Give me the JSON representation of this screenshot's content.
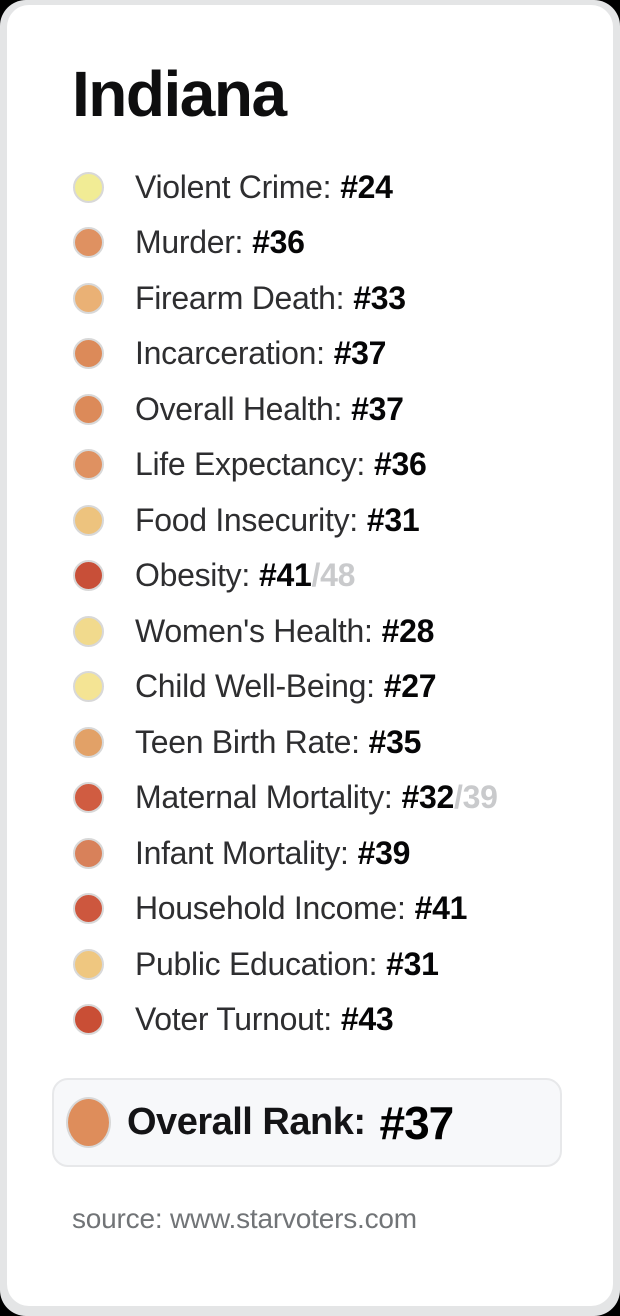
{
  "title": "Indiana",
  "rows": [
    {
      "label": "Violent Crime:",
      "rank": "#24",
      "alt": "",
      "color": "#f1ec95"
    },
    {
      "label": "Murder:",
      "rank": "#36",
      "alt": "",
      "color": "#df9161"
    },
    {
      "label": "Firearm Death:",
      "rank": "#33",
      "alt": "",
      "color": "#eab175"
    },
    {
      "label": "Incarceration:",
      "rank": "#37",
      "alt": "",
      "color": "#dc8a59"
    },
    {
      "label": "Overall Health:",
      "rank": "#37",
      "alt": "",
      "color": "#dc8a59"
    },
    {
      "label": "Life Expectancy:",
      "rank": "#36",
      "alt": "",
      "color": "#df9161"
    },
    {
      "label": "Food Insecurity:",
      "rank": "#31",
      "alt": "",
      "color": "#edc37e"
    },
    {
      "label": "Obesity:",
      "rank": "#41",
      "alt": "/48",
      "color": "#c84f38"
    },
    {
      "label": "Women's Health:",
      "rank": "#28",
      "alt": "",
      "color": "#f1da8d"
    },
    {
      "label": "Child Well-Being:",
      "rank": "#27",
      "alt": "",
      "color": "#f4e494"
    },
    {
      "label": "Teen Birth Rate:",
      "rank": "#35",
      "alt": "",
      "color": "#e2a167"
    },
    {
      "label": "Maternal Mortality:",
      "rank": "#32",
      "alt": "/39",
      "color": "#d05c41"
    },
    {
      "label": "Infant Mortality:",
      "rank": "#39",
      "alt": "",
      "color": "#d8815a"
    },
    {
      "label": "Household Income:",
      "rank": "#41",
      "alt": "",
      "color": "#cd573e"
    },
    {
      "label": "Public Education:",
      "rank": "#31",
      "alt": "",
      "color": "#efc780"
    },
    {
      "label": "Voter Turnout:",
      "rank": "#43",
      "alt": "",
      "color": "#c94e35"
    }
  ],
  "overall": {
    "label": "Overall Rank:",
    "rank": "#37",
    "color": "#de8d5b"
  },
  "footer": "source: www.starvoters.com",
  "colors": {
    "page_bg": "#000000",
    "frame_bg": "#e4e5e6",
    "card_bg": "#ffffff",
    "dot_border": "#d8d8d8",
    "label_text": "#2e2e30",
    "rank_text": "#060607",
    "alt_rank_text": "#c9cacc",
    "overall_box_bg": "#f7f8fa",
    "overall_box_border": "#e7e8ea",
    "footer_text": "#717477"
  },
  "chart_data": {
    "type": "table",
    "title": "Indiana",
    "categories": [
      "Violent Crime",
      "Murder",
      "Firearm Death",
      "Incarceration",
      "Overall Health",
      "Life Expectancy",
      "Food Insecurity",
      "Obesity",
      "Women's Health",
      "Child Well-Being",
      "Teen Birth Rate",
      "Maternal Mortality",
      "Infant Mortality",
      "Household Income",
      "Public Education",
      "Voter Turnout"
    ],
    "values": [
      24,
      36,
      33,
      37,
      37,
      36,
      31,
      41,
      28,
      27,
      35,
      32,
      39,
      41,
      31,
      43
    ],
    "secondary_scales": [
      {
        "category": "Obesity",
        "value": 41,
        "scale_max": 48
      },
      {
        "category": "Maternal Mortality",
        "value": 32,
        "scale_max": 39
      }
    ],
    "overall_rank": 37,
    "legend": "dot color scale: pale yellow (better rank) to red (worse rank)",
    "source": "source: www.starvoters.com"
  }
}
